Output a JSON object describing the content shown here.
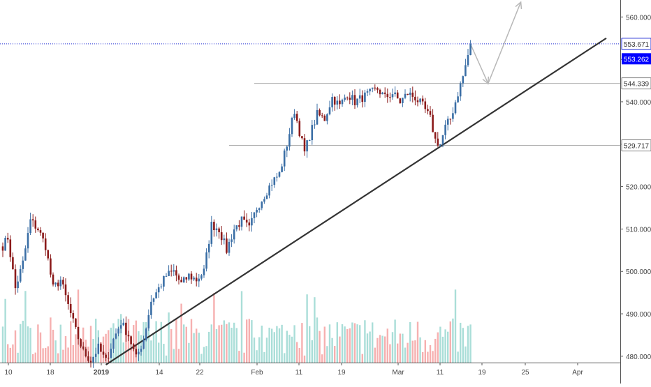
{
  "chart_data": {
    "type": "candlestick",
    "x_ticks": [
      "10",
      "18",
      "2019",
      "14",
      "22",
      "Feb",
      "11",
      "19",
      "Mar",
      "11",
      "19",
      "25",
      "Apr"
    ],
    "y_ticks": [
      "560.000",
      "550.000",
      "540.000",
      "530.000",
      "520.000",
      "510.000",
      "500.000",
      "490.000",
      "480.000"
    ],
    "ylim": [
      478.5,
      564
    ],
    "price_labels": [
      {
        "text": "553.671",
        "value": 553.671,
        "style": "outlined",
        "color": "#1e2bd3"
      },
      {
        "text": "553.262",
        "value": 553.262,
        "style": "filled",
        "color": "#0000ff"
      },
      {
        "text": "544.339",
        "value": 544.339,
        "style": "outlined",
        "color": "#7f7f7f"
      },
      {
        "text": "529.717",
        "value": 529.717,
        "style": "outlined",
        "color": "#7f7f7f"
      }
    ],
    "anchors": [
      [
        0,
        506
      ],
      [
        2,
        508
      ],
      [
        5,
        496
      ],
      [
        8,
        502
      ],
      [
        11,
        512
      ],
      [
        14,
        510
      ],
      [
        17,
        506
      ],
      [
        20,
        496
      ],
      [
        23,
        498
      ],
      [
        26,
        492
      ],
      [
        29,
        486
      ],
      [
        32,
        481
      ],
      [
        35,
        479
      ],
      [
        38,
        482
      ],
      [
        41,
        478.8
      ],
      [
        44,
        484
      ],
      [
        47,
        488
      ],
      [
        50,
        485
      ],
      [
        53,
        479.5
      ],
      [
        56,
        484
      ],
      [
        59,
        493
      ],
      [
        62,
        496
      ],
      [
        65,
        499
      ],
      [
        68,
        500
      ],
      [
        71,
        497
      ],
      [
        74,
        499
      ],
      [
        77,
        498
      ],
      [
        80,
        500
      ],
      [
        83,
        511
      ],
      [
        86,
        510
      ],
      [
        89,
        505
      ],
      [
        92,
        510
      ],
      [
        95,
        512
      ],
      [
        98,
        510
      ],
      [
        101,
        515
      ],
      [
        104,
        518
      ],
      [
        107,
        521
      ],
      [
        110,
        523
      ],
      [
        113,
        530
      ],
      [
        116,
        538
      ],
      [
        118,
        533
      ],
      [
        120,
        528
      ],
      [
        122,
        532
      ],
      [
        125,
        537
      ],
      [
        128,
        536
      ],
      [
        131,
        541
      ],
      [
        134,
        539
      ],
      [
        137,
        542
      ],
      [
        140,
        540
      ],
      [
        143,
        541
      ],
      [
        146,
        542
      ],
      [
        149,
        543
      ],
      [
        152,
        541
      ],
      [
        155,
        542
      ],
      [
        158,
        540
      ],
      [
        161,
        542
      ],
      [
        164,
        541
      ],
      [
        167,
        539
      ],
      [
        170,
        536
      ],
      [
        172,
        531
      ],
      [
        174,
        530
      ],
      [
        176,
        534
      ],
      [
        178,
        536
      ],
      [
        180,
        540
      ],
      [
        183,
        546
      ],
      [
        185,
        551
      ],
      [
        186,
        554
      ]
    ],
    "volume_color_up": "#9bd8d1",
    "volume_color_down": "#f4a2a2",
    "candle_up_color": "#3a6ea5",
    "candle_down_color": "#8b1a1a",
    "trendline": {
      "from": [
        41,
        478
      ],
      "to": [
        240,
        555
      ],
      "color": "#333333"
    },
    "h_lines": [
      {
        "from": 100,
        "to": 260,
        "value": 544.339,
        "color": "#b0b0b0"
      },
      {
        "from": 90,
        "to": 260,
        "value": 529.717,
        "color": "#b0b0b0"
      }
    ],
    "dotted_price_line": {
      "value": 553.671,
      "color": "#1e2bd3"
    },
    "projection_path": {
      "points": [
        [
          186,
          553.6
        ],
        [
          193,
          544.3
        ],
        [
          206,
          563.5
        ]
      ],
      "color": "#b8b8b8"
    }
  }
}
